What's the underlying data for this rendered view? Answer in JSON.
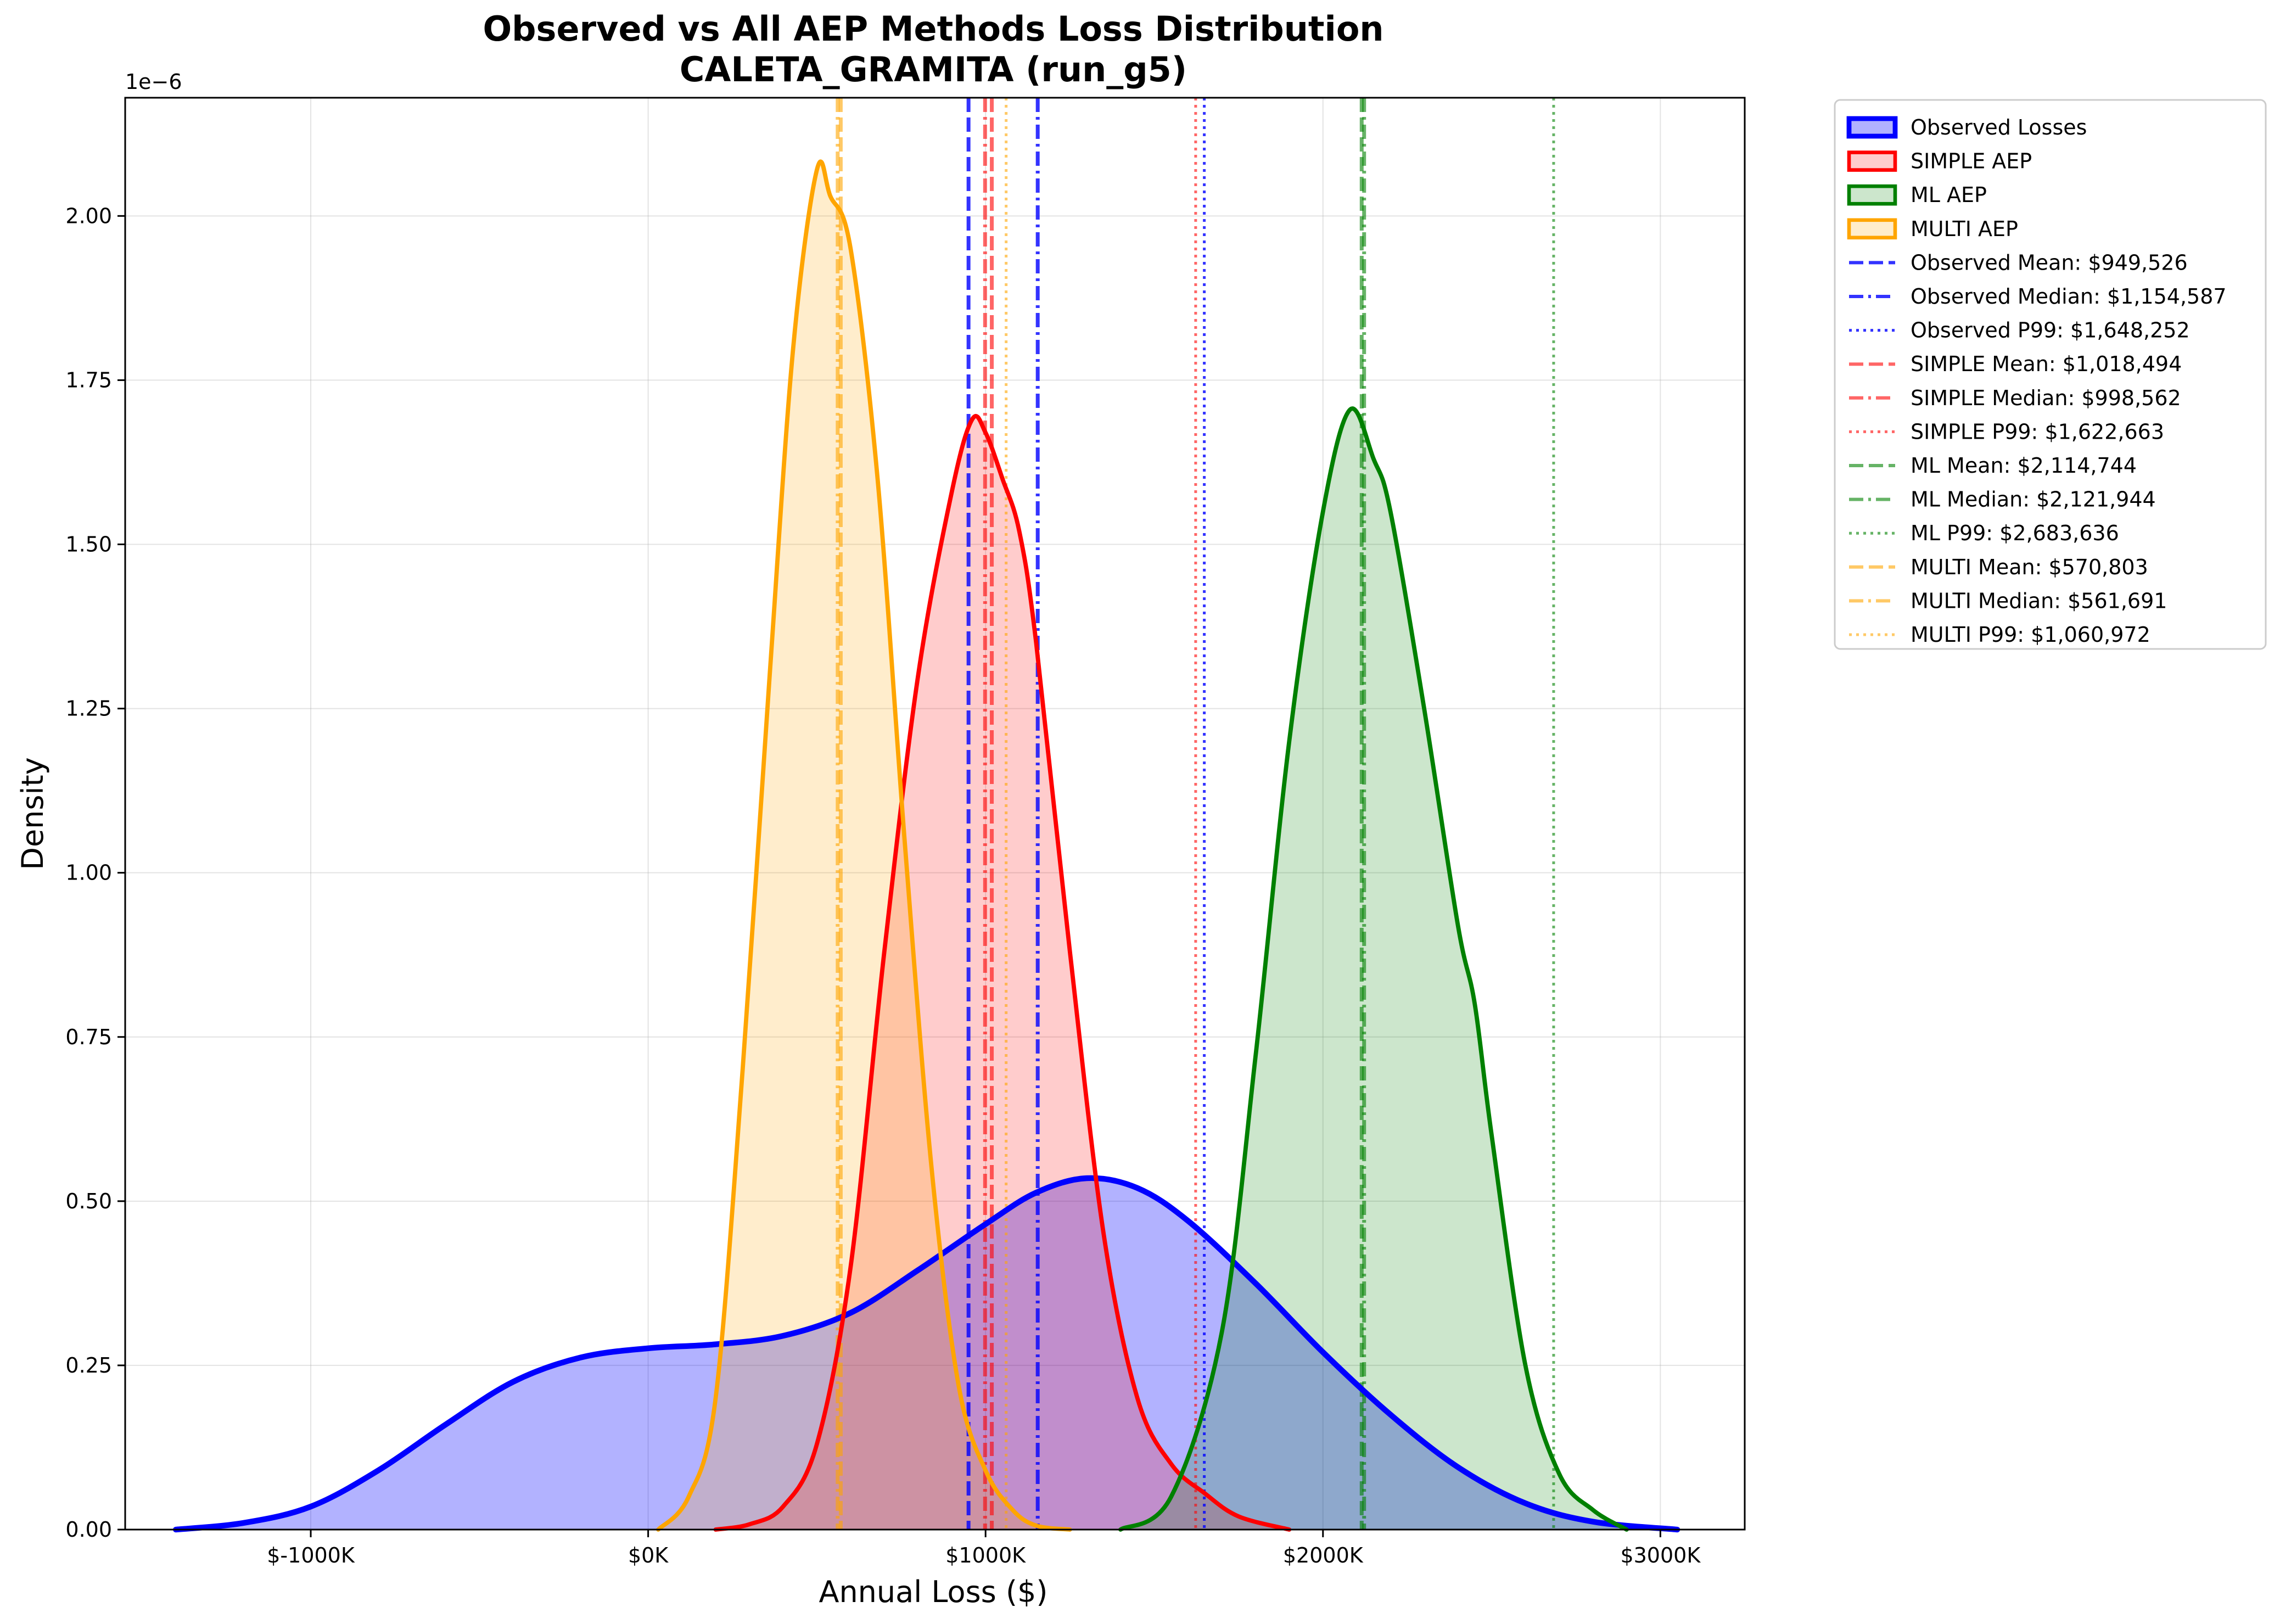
{
  "chart_data": {
    "type": "area",
    "title": "Observed vs All AEP Methods Loss Distribution",
    "subtitle": "CALETA_GRAMITA (run_g5)",
    "xlabel": "Annual Loss ($)",
    "ylabel": "Density",
    "y_multiplier_label": "1e−6",
    "xlim": [
      -1550000,
      3250000
    ],
    "ylim": [
      0,
      2.18
    ],
    "x_ticks": [
      {
        "value": -1000000,
        "label": "$-1000K"
      },
      {
        "value": 0,
        "label": "$0K"
      },
      {
        "value": 1000000,
        "label": "$1000K"
      },
      {
        "value": 2000000,
        "label": "$2000K"
      },
      {
        "value": 3000000,
        "label": "$3000K"
      }
    ],
    "y_ticks": [
      {
        "value": 0,
        "label": "0.00"
      },
      {
        "value": 0.25,
        "label": "0.25"
      },
      {
        "value": 0.5,
        "label": "0.50"
      },
      {
        "value": 0.75,
        "label": "0.75"
      },
      {
        "value": 1.0,
        "label": "1.00"
      },
      {
        "value": 1.25,
        "label": "1.25"
      },
      {
        "value": 1.5,
        "label": "1.50"
      },
      {
        "value": 1.75,
        "label": "1.75"
      },
      {
        "value": 2.0,
        "label": "2.00"
      }
    ],
    "grid": true,
    "legend_position": "outside-right-top",
    "series": [
      {
        "name": "Observed Losses",
        "color": "#0000ff",
        "fill": "#0000ff",
        "fill_opacity": 0.3,
        "stroke_width": 4,
        "points": [
          [
            -1400000,
            0
          ],
          [
            -1200000,
            0.01
          ],
          [
            -1000000,
            0.035
          ],
          [
            -800000,
            0.09
          ],
          [
            -600000,
            0.16
          ],
          [
            -400000,
            0.225
          ],
          [
            -200000,
            0.262
          ],
          [
            0,
            0.276
          ],
          [
            200000,
            0.282
          ],
          [
            400000,
            0.295
          ],
          [
            600000,
            0.33
          ],
          [
            800000,
            0.395
          ],
          [
            1000000,
            0.465
          ],
          [
            1150000,
            0.513
          ],
          [
            1300000,
            0.535
          ],
          [
            1450000,
            0.52
          ],
          [
            1600000,
            0.47
          ],
          [
            1800000,
            0.375
          ],
          [
            2000000,
            0.27
          ],
          [
            2200000,
            0.175
          ],
          [
            2400000,
            0.095
          ],
          [
            2600000,
            0.04
          ],
          [
            2800000,
            0.012
          ],
          [
            3050000,
            0
          ]
        ]
      },
      {
        "name": "SIMPLE AEP",
        "color": "#ff0000",
        "fill": "#ff0000",
        "fill_opacity": 0.2,
        "stroke_width": 3,
        "points": [
          [
            200000,
            0
          ],
          [
            300000,
            0.008
          ],
          [
            400000,
            0.035
          ],
          [
            500000,
            0.13
          ],
          [
            600000,
            0.4
          ],
          [
            700000,
            0.88
          ],
          [
            800000,
            1.3
          ],
          [
            900000,
            1.58
          ],
          [
            960000,
            1.69
          ],
          [
            1000000,
            1.67
          ],
          [
            1050000,
            1.6
          ],
          [
            1100000,
            1.52
          ],
          [
            1150000,
            1.35
          ],
          [
            1250000,
            0.88
          ],
          [
            1350000,
            0.45
          ],
          [
            1450000,
            0.2
          ],
          [
            1550000,
            0.1
          ],
          [
            1650000,
            0.055
          ],
          [
            1750000,
            0.02
          ],
          [
            1900000,
            0
          ]
        ]
      },
      {
        "name": "ML AEP",
        "color": "#008000",
        "fill": "#008000",
        "fill_opacity": 0.2,
        "stroke_width": 3,
        "points": [
          [
            1400000,
            0
          ],
          [
            1550000,
            0.05
          ],
          [
            1700000,
            0.3
          ],
          [
            1800000,
            0.72
          ],
          [
            1900000,
            1.2
          ],
          [
            2000000,
            1.55
          ],
          [
            2080000,
            1.705
          ],
          [
            2150000,
            1.63
          ],
          [
            2200000,
            1.55
          ],
          [
            2300000,
            1.25
          ],
          [
            2400000,
            0.92
          ],
          [
            2450000,
            0.8
          ],
          [
            2500000,
            0.6
          ],
          [
            2600000,
            0.25
          ],
          [
            2700000,
            0.085
          ],
          [
            2800000,
            0.03
          ],
          [
            2900000,
            0
          ]
        ]
      },
      {
        "name": "MULTI AEP",
        "color": "#ffa500",
        "fill": "#ffa500",
        "fill_opacity": 0.2,
        "stroke_width": 3,
        "points": [
          [
            30000,
            0
          ],
          [
            120000,
            0.05
          ],
          [
            200000,
            0.2
          ],
          [
            280000,
            0.7
          ],
          [
            360000,
            1.3
          ],
          [
            430000,
            1.8
          ],
          [
            500000,
            2.07
          ],
          [
            540000,
            2.03
          ],
          [
            600000,
            1.95
          ],
          [
            680000,
            1.6
          ],
          [
            760000,
            1.05
          ],
          [
            840000,
            0.55
          ],
          [
            920000,
            0.22
          ],
          [
            1000000,
            0.09
          ],
          [
            1080000,
            0.03
          ],
          [
            1150000,
            0.006
          ],
          [
            1250000,
            0
          ]
        ]
      }
    ],
    "vlines": [
      {
        "label": "Observed Mean: $949,526",
        "x": 949526,
        "color": "#0000ff",
        "dash": "dashed",
        "alpha": 0.8
      },
      {
        "label": "Observed Median: $1,154,587",
        "x": 1154587,
        "color": "#0000ff",
        "dash": "dashdot",
        "alpha": 0.8
      },
      {
        "label": "Observed P99: $1,648,252",
        "x": 1648252,
        "color": "#0000ff",
        "dash": "dotted",
        "alpha": 0.8
      },
      {
        "label": "SIMPLE Mean: $1,018,494",
        "x": 1018494,
        "color": "#ff0000",
        "dash": "dashed",
        "alpha": 0.6
      },
      {
        "label": "SIMPLE Median: $998,562",
        "x": 998562,
        "color": "#ff0000",
        "dash": "dashdot",
        "alpha": 0.6
      },
      {
        "label": "SIMPLE P99: $1,622,663",
        "x": 1622663,
        "color": "#ff0000",
        "dash": "dotted",
        "alpha": 0.6
      },
      {
        "label": "ML Mean: $2,114,744",
        "x": 2114744,
        "color": "#008000",
        "dash": "dashed",
        "alpha": 0.6
      },
      {
        "label": "ML Median: $2,121,944",
        "x": 2121944,
        "color": "#008000",
        "dash": "dashdot",
        "alpha": 0.6
      },
      {
        "label": "ML P99: $2,683,636",
        "x": 2683636,
        "color": "#008000",
        "dash": "dotted",
        "alpha": 0.6
      },
      {
        "label": "MULTI Mean: $570,803",
        "x": 570803,
        "color": "#ffa500",
        "dash": "dashed",
        "alpha": 0.6
      },
      {
        "label": "MULTI Median: $561,691",
        "x": 561691,
        "color": "#ffa500",
        "dash": "dashdot",
        "alpha": 0.6
      },
      {
        "label": "MULTI P99: $1,060,972",
        "x": 1060972,
        "color": "#ffa500",
        "dash": "dotted",
        "alpha": 0.6
      }
    ]
  }
}
